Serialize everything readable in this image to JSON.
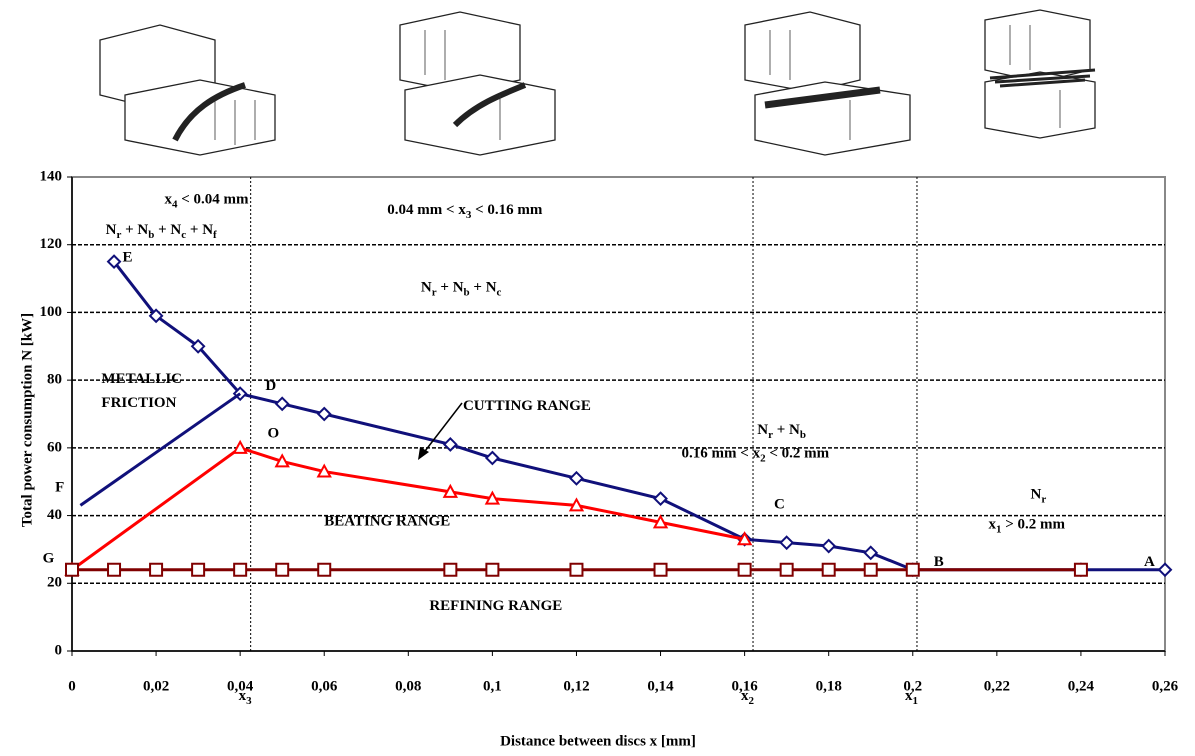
{
  "chart_data": {
    "type": "line",
    "x_label": "Distance between discs x [mm]",
    "y_label": "Total power consumption N [kW]",
    "xlim": [
      0,
      0.26
    ],
    "ylim": [
      0,
      140
    ],
    "xticks": [
      0,
      {
        "value": 0.02,
        "label": "0,02"
      },
      {
        "value": 0.04,
        "label": "0,04"
      },
      {
        "value": 0.06,
        "label": "0,06"
      },
      {
        "value": 0.08,
        "label": "0,08"
      },
      {
        "value": 0.1,
        "label": "0,1"
      },
      {
        "value": 0.12,
        "label": "0,12"
      },
      {
        "value": 0.14,
        "label": "0,14"
      },
      {
        "value": 0.16,
        "label": "0,16"
      },
      {
        "value": 0.18,
        "label": "0,18"
      },
      {
        "value": 0.2,
        "label": "0,2"
      },
      {
        "value": 0.22,
        "label": "0,22"
      },
      {
        "value": 0.24,
        "label": "0,24"
      },
      {
        "value": 0.26,
        "label": "0,26"
      }
    ],
    "yticks": [
      0,
      20,
      40,
      60,
      80,
      100,
      120,
      140
    ],
    "grid": true,
    "series": [
      {
        "color": "#10107a",
        "marker": "diamond",
        "x": [
          0.01,
          0.02,
          0.03,
          0.04,
          0.05,
          0.06,
          0.09,
          0.1,
          0.12,
          0.14,
          0.16,
          0.17,
          0.18,
          0.19,
          0.2,
          0.24,
          0.26
        ],
        "values": [
          115,
          99,
          90,
          76,
          73,
          70,
          61,
          57,
          51,
          45,
          33,
          32,
          31,
          29,
          24,
          24,
          24
        ]
      },
      {
        "color": "#10107a",
        "marker": "none",
        "x": [
          0.002,
          0.04
        ],
        "values": [
          43,
          76
        ]
      },
      {
        "color": "#ff0000",
        "marker": "triangle",
        "x": [
          0,
          0.04,
          0.05,
          0.06,
          0.09,
          0.1,
          0.12,
          0.14,
          0.16
        ],
        "values": [
          24,
          60,
          56,
          53,
          47,
          45,
          43,
          38,
          33
        ]
      },
      {
        "color": "#800000",
        "marker": "square",
        "x": [
          0,
          0.01,
          0.02,
          0.03,
          0.04,
          0.05,
          0.06,
          0.09,
          0.1,
          0.12,
          0.14,
          0.16,
          0.17,
          0.18,
          0.19,
          0.2,
          0.24
        ],
        "values": [
          24,
          24,
          24,
          24,
          24,
          24,
          24,
          24,
          24,
          24,
          24,
          24,
          24,
          24,
          24,
          24,
          24
        ]
      }
    ],
    "boundaries": [
      {
        "x": 0.0425,
        "parts": [
          "x",
          "3"
        ]
      },
      {
        "x": 0.162,
        "parts": [
          "x",
          "2"
        ]
      },
      {
        "x": 0.201,
        "parts": [
          "x",
          "1"
        ]
      }
    ],
    "annotations": [
      {
        "x": 0.022,
        "y": 133,
        "parts": [
          "x",
          "4",
          " < 0.04 mm"
        ]
      },
      {
        "x": 0.075,
        "y": 130,
        "parts": [
          "0.04 mm < x",
          "3",
          " < 0.16 mm"
        ]
      },
      {
        "x": 0.008,
        "y": 124,
        "parts": [
          "N",
          "r",
          " + N",
          "b",
          " + N",
          "c",
          " + N",
          "f"
        ]
      },
      {
        "x": 0.012,
        "y": 116,
        "parts": [
          "E"
        ]
      },
      {
        "x": 0.083,
        "y": 107,
        "parts": [
          "N",
          "r",
          " + N",
          "b",
          " + N",
          "c"
        ]
      },
      {
        "x": 0.007,
        "y": 80,
        "parts": [
          "METALLIC"
        ]
      },
      {
        "x": 0.007,
        "y": 73,
        "parts": [
          "FRICTION"
        ]
      },
      {
        "x": 0.046,
        "y": 78,
        "parts": [
          "D"
        ]
      },
      {
        "x": 0.093,
        "y": 72,
        "parts": [
          "CUTTING RANGE"
        ]
      },
      {
        "x": 0.0465,
        "y": 64,
        "parts": [
          "O"
        ]
      },
      {
        "x": 0.163,
        "y": 65,
        "parts": [
          "N",
          "r",
          " + N",
          "b"
        ]
      },
      {
        "x": 0.145,
        "y": 58,
        "parts": [
          "0.16 mm < x",
          "2",
          " < 0.2 mm"
        ]
      },
      {
        "x": -0.004,
        "y": 48,
        "parts": [
          "F"
        ]
      },
      {
        "x": 0.167,
        "y": 43,
        "parts": [
          "C"
        ]
      },
      {
        "x": 0.06,
        "y": 38,
        "parts": [
          "BEATING RANGE"
        ]
      },
      {
        "x": 0.228,
        "y": 46,
        "parts": [
          "N",
          "r"
        ]
      },
      {
        "x": 0.218,
        "y": 37,
        "parts": [
          "x",
          "1",
          " > 0.2 mm"
        ]
      },
      {
        "x": -0.007,
        "y": 27,
        "parts": [
          "G"
        ]
      },
      {
        "x": 0.205,
        "y": 26,
        "parts": [
          "B"
        ]
      },
      {
        "x": 0.255,
        "y": 26,
        "parts": [
          "A"
        ]
      },
      {
        "x": 0.085,
        "y": 13,
        "parts": [
          "REFINING RANGE"
        ]
      }
    ]
  }
}
